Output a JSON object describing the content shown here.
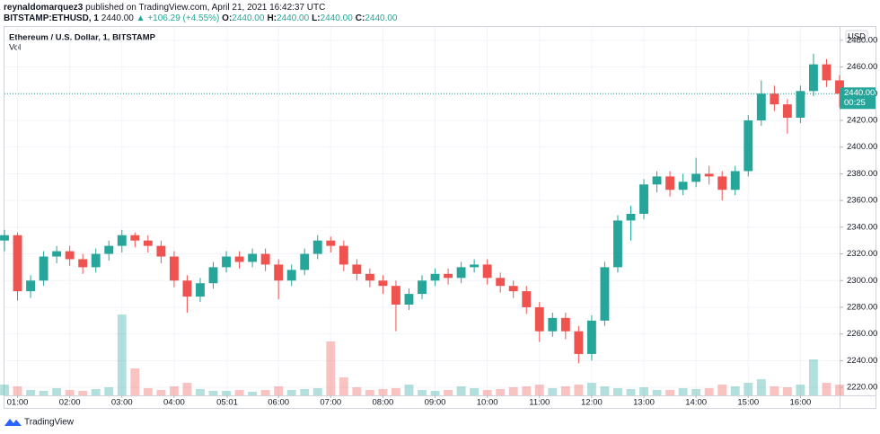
{
  "header": {
    "publisher": "reynaldomarquez3",
    "published_text": "published on TradingView.com, April 21, 2021 16:42:37 UTC",
    "symbol": "BITSTAMP:ETHUSD, 1",
    "price": "2440.00",
    "change": "▲ +106.29 (+4.55%)",
    "ohlc": [
      {
        "key": "O:",
        "value": "2440.00"
      },
      {
        "key": "H:",
        "value": "2440.00"
      },
      {
        "key": "L:",
        "value": "2440.00"
      },
      {
        "key": "C:",
        "value": "2440.00"
      }
    ]
  },
  "chart_data": {
    "type": "candlestick",
    "title": "Ethereum / U.S. Dollar, 1, BITSTAMP",
    "subtitle": "Vol",
    "currency": "USD",
    "up_color": "#26a69a",
    "down_color": "#ef5350",
    "grid": true,
    "x": [
      0.75,
      1,
      1.25,
      1.5,
      1.75,
      2,
      2.25,
      2.5,
      2.75,
      3,
      3.25,
      3.5,
      3.75,
      4,
      4.25,
      4.5,
      4.75,
      5,
      5.25,
      5.5,
      5.75,
      6,
      6.25,
      6.5,
      6.75,
      7,
      7.25,
      7.5,
      7.75,
      8,
      8.25,
      8.5,
      8.75,
      9,
      9.25,
      9.5,
      9.75,
      10,
      10.25,
      10.5,
      10.75,
      11,
      11.25,
      11.5,
      11.75,
      12,
      12.25,
      12.5,
      12.75,
      13,
      13.25,
      13.5,
      13.75,
      14,
      14.25,
      14.5,
      14.75,
      15,
      15.25,
      15.5,
      15.75,
      16,
      16.25,
      16.5,
      16.75
    ],
    "open": [
      2330,
      2334,
      2292,
      2300,
      2318,
      2322,
      2316,
      2310,
      2320,
      2326,
      2334,
      2330,
      2326,
      2318,
      2300,
      2288,
      2298,
      2310,
      2318,
      2314,
      2320,
      2312,
      2300,
      2308,
      2320,
      2330,
      2326,
      2312,
      2305,
      2300,
      2296,
      2282,
      2290,
      2300,
      2305,
      2302,
      2310,
      2312,
      2302,
      2296,
      2292,
      2280,
      2262,
      2272,
      2262,
      2245,
      2270,
      2310,
      2345,
      2350,
      2372,
      2378,
      2368,
      2374,
      2380,
      2378,
      2368,
      2382,
      2420,
      2440,
      2432,
      2422,
      2442,
      2462,
      2450
    ],
    "high": [
      2338,
      2336,
      2304,
      2322,
      2326,
      2326,
      2320,
      2324,
      2330,
      2338,
      2336,
      2334,
      2330,
      2322,
      2304,
      2302,
      2314,
      2322,
      2322,
      2324,
      2324,
      2316,
      2312,
      2324,
      2334,
      2333,
      2330,
      2316,
      2309,
      2304,
      2300,
      2294,
      2304,
      2309,
      2309,
      2314,
      2316,
      2316,
      2306,
      2300,
      2296,
      2284,
      2276,
      2276,
      2266,
      2274,
      2314,
      2349,
      2356,
      2376,
      2382,
      2382,
      2380,
      2392,
      2386,
      2382,
      2386,
      2424,
      2450,
      2446,
      2436,
      2446,
      2470,
      2466,
      2454
    ],
    "low": [
      2322,
      2285,
      2287,
      2296,
      2313,
      2311,
      2305,
      2306,
      2315,
      2321,
      2325,
      2321,
      2313,
      2295,
      2276,
      2284,
      2294,
      2306,
      2309,
      2310,
      2307,
      2286,
      2296,
      2304,
      2316,
      2321,
      2307,
      2300,
      2295,
      2290,
      2262,
      2278,
      2286,
      2296,
      2297,
      2298,
      2306,
      2297,
      2291,
      2287,
      2275,
      2254,
      2258,
      2256,
      2238,
      2240,
      2266,
      2306,
      2330,
      2346,
      2366,
      2363,
      2364,
      2370,
      2372,
      2360,
      2364,
      2378,
      2416,
      2427,
      2410,
      2418,
      2438,
      2445,
      2430
    ],
    "close": [
      2334,
      2292,
      2300,
      2318,
      2322,
      2316,
      2310,
      2320,
      2326,
      2334,
      2330,
      2326,
      2318,
      2300,
      2288,
      2298,
      2310,
      2318,
      2314,
      2320,
      2312,
      2300,
      2308,
      2320,
      2330,
      2326,
      2312,
      2305,
      2300,
      2296,
      2282,
      2290,
      2300,
      2305,
      2302,
      2310,
      2312,
      2302,
      2296,
      2292,
      2280,
      2262,
      2272,
      2262,
      2245,
      2270,
      2310,
      2345,
      2350,
      2372,
      2378,
      2368,
      2374,
      2380,
      2378,
      2368,
      2382,
      2420,
      2440,
      2432,
      2422,
      2442,
      2462,
      2450,
      2440
    ],
    "volume": [
      12,
      10,
      6,
      5,
      8,
      6,
      5,
      7,
      9,
      90,
      30,
      8,
      6,
      10,
      14,
      7,
      5,
      5,
      6,
      4,
      6,
      10,
      6,
      7,
      8,
      60,
      20,
      9,
      6,
      7,
      8,
      12,
      6,
      5,
      6,
      10,
      8,
      6,
      7,
      9,
      10,
      12,
      8,
      10,
      12,
      14,
      10,
      8,
      7,
      9,
      6,
      6,
      8,
      7,
      8,
      12,
      10,
      14,
      18,
      10,
      9,
      12,
      40,
      14,
      12
    ],
    "xlim": [
      0.75,
      16.75
    ],
    "xticks": [
      {
        "value": 1,
        "label": "01:00"
      },
      {
        "value": 2,
        "label": "02:00"
      },
      {
        "value": 3,
        "label": "03:00"
      },
      {
        "value": 4,
        "label": "04:00"
      },
      {
        "value": 5.0167,
        "label": "05:01"
      },
      {
        "value": 6,
        "label": "06:00"
      },
      {
        "value": 7,
        "label": "07:00"
      },
      {
        "value": 8,
        "label": "08:00"
      },
      {
        "value": 9,
        "label": "09:00"
      },
      {
        "value": 10,
        "label": "10:00"
      },
      {
        "value": 11,
        "label": "11:00"
      },
      {
        "value": 12,
        "label": "12:00"
      },
      {
        "value": 13,
        "label": "13:00"
      },
      {
        "value": 14,
        "label": "14:00"
      },
      {
        "value": 15,
        "label": "15:00"
      },
      {
        "value": 16,
        "label": "16:00"
      }
    ],
    "ylim": [
      2214,
      2490
    ],
    "yticks": [
      {
        "value": 2220,
        "label": "2220.00"
      },
      {
        "value": 2240,
        "label": "2240.00"
      },
      {
        "value": 2260,
        "label": "2260.00"
      },
      {
        "value": 2280,
        "label": "2280.00"
      },
      {
        "value": 2300,
        "label": "2300.00"
      },
      {
        "value": 2320,
        "label": "2320.00"
      },
      {
        "value": 2340,
        "label": "2340.00"
      },
      {
        "value": 2360,
        "label": "2360.00"
      },
      {
        "value": 2380,
        "label": "2380.00"
      },
      {
        "value": 2400,
        "label": "2400.00"
      },
      {
        "value": 2420,
        "label": "2420.00"
      },
      {
        "value": 2440,
        "label": "2440.00"
      },
      {
        "value": 2460,
        "label": "2460.00"
      },
      {
        "value": 2480,
        "label": "2480.00"
      }
    ],
    "last_price": {
      "value": 2440,
      "label": "2440.00",
      "countdown": "00:25"
    }
  },
  "footer": {
    "logo": "TradingView"
  }
}
